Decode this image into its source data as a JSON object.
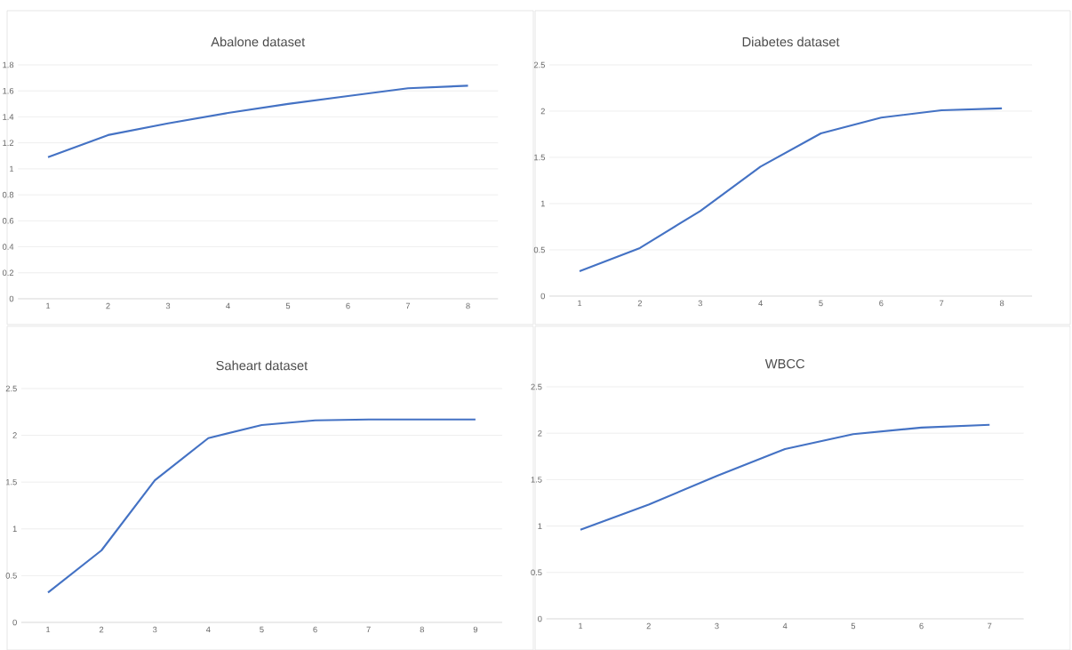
{
  "chart_data": [
    {
      "type": "line",
      "title": "Abalone dataset",
      "categories": [
        "1",
        "2",
        "3",
        "4",
        "5",
        "6",
        "7",
        "8"
      ],
      "color": "#4472c4",
      "grid": "y",
      "ylim": [
        0,
        1.8
      ],
      "yticks": [
        0,
        {
          "value": 0.2,
          "label": "0.2"
        },
        {
          "value": 0.4,
          "label": "0.4"
        },
        {
          "value": 0.6,
          "label": "0.6"
        },
        {
          "value": 0.8,
          "label": "0.8"
        },
        1,
        {
          "value": 1.2,
          "label": "1.2"
        },
        {
          "value": 1.4,
          "label": "1.4"
        },
        {
          "value": 1.6,
          "label": "1.6"
        },
        {
          "value": 1.8,
          "label": "1.8"
        }
      ],
      "values": [
        1.09,
        1.26,
        1.35,
        1.43,
        1.5,
        1.56,
        1.62,
        1.64
      ]
    },
    {
      "type": "line",
      "title": "Diabetes dataset",
      "categories": [
        "1",
        "2",
        "3",
        "4",
        "5",
        "6",
        "7",
        "8"
      ],
      "color": "#4472c4",
      "grid": "y",
      "ylim": [
        0,
        2.5
      ],
      "yticks": [
        0,
        {
          "value": 0.5,
          "label": "0.5"
        },
        1,
        {
          "value": 1.5,
          "label": "1.5"
        },
        2,
        {
          "value": 2.5,
          "label": "2.5"
        }
      ],
      "values": [
        0.27,
        0.52,
        0.92,
        1.4,
        1.76,
        1.93,
        2.01,
        2.03
      ]
    },
    {
      "type": "line",
      "title": "Saheart dataset",
      "categories": [
        "1",
        "2",
        "3",
        "4",
        "5",
        "6",
        "7",
        "8",
        "9"
      ],
      "color": "#4472c4",
      "grid": "y",
      "ylim": [
        0,
        2.5
      ],
      "yticks": [
        0,
        {
          "value": 0.5,
          "label": "0.5"
        },
        1,
        {
          "value": 1.5,
          "label": "1.5"
        },
        2,
        {
          "value": 2.5,
          "label": "2.5"
        }
      ],
      "values": [
        0.32,
        0.77,
        1.52,
        1.97,
        2.11,
        2.16,
        2.17,
        2.17,
        2.17
      ]
    },
    {
      "type": "line",
      "title": "WBCC",
      "categories": [
        "1",
        "2",
        "3",
        "4",
        "5",
        "6",
        "7"
      ],
      "color": "#4472c4",
      "grid": "y",
      "ylim": [
        0,
        2.5
      ],
      "yticks": [
        0,
        {
          "value": 0.5,
          "label": "0.5"
        },
        1,
        {
          "value": 1.5,
          "label": "1.5"
        },
        2,
        {
          "value": 2.5,
          "label": "2.5"
        }
      ],
      "values": [
        0.96,
        1.23,
        1.54,
        1.83,
        1.99,
        2.06,
        2.09
      ]
    }
  ]
}
